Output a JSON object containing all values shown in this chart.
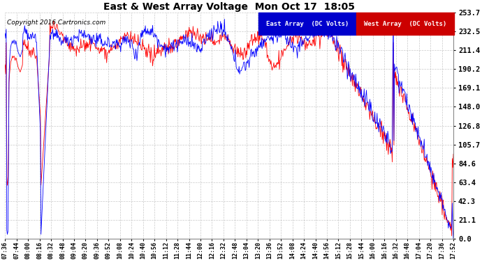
{
  "title": "East & West Array Voltage  Mon Oct 17  18:05",
  "copyright": "Copyright 2016 Cartronics.com",
  "legend_east": "East Array  (DC Volts)",
  "legend_west": "West Array  (DC Volts)",
  "east_color": "#0000FF",
  "west_color": "#FF0000",
  "legend_east_bg": "#0000CC",
  "legend_west_bg": "#CC0000",
  "background_color": "#FFFFFF",
  "plot_bg_color": "#FFFFFF",
  "grid_color": "#BBBBBB",
  "yticks": [
    0.0,
    21.1,
    42.3,
    63.4,
    84.6,
    105.7,
    126.8,
    148.0,
    169.1,
    190.2,
    211.4,
    232.5,
    253.7
  ],
  "ylim": [
    0.0,
    253.7
  ],
  "xtick_labels": [
    "07:36",
    "07:44",
    "08:00",
    "08:16",
    "08:32",
    "08:48",
    "09:04",
    "09:20",
    "09:36",
    "09:52",
    "10:08",
    "10:24",
    "10:40",
    "10:56",
    "11:12",
    "11:28",
    "11:44",
    "12:00",
    "12:16",
    "12:32",
    "12:48",
    "13:04",
    "13:20",
    "13:36",
    "13:52",
    "14:08",
    "14:24",
    "14:40",
    "14:56",
    "15:12",
    "15:28",
    "15:44",
    "16:00",
    "16:16",
    "16:32",
    "16:48",
    "17:04",
    "17:20",
    "17:36",
    "17:52"
  ],
  "seed": 12345,
  "n_points": 800
}
